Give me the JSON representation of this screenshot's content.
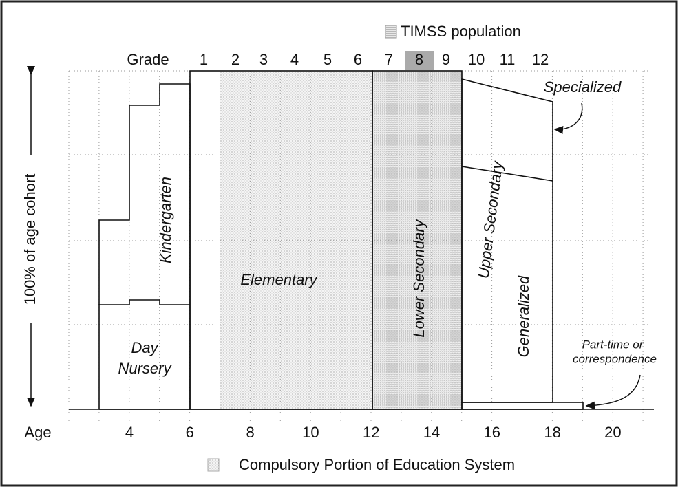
{
  "legend": {
    "timss": "TIMSS population",
    "compulsory": "Compulsory Portion of Education System"
  },
  "grade_label": "Grade",
  "grades": [
    1,
    2,
    3,
    4,
    5,
    6,
    7,
    8,
    9,
    10,
    11,
    12
  ],
  "age_label": "Age",
  "ages": [
    4,
    6,
    8,
    10,
    12,
    14,
    16,
    18,
    20
  ],
  "y_axis_label": "100% of age cohort",
  "regions": {
    "day_nursery": [
      "Day",
      "Nursery"
    ],
    "kindergarten": "Kindergarten",
    "elementary": "Elementary",
    "lower_secondary": "Lower Secondary",
    "upper_secondary": "Upper Secondary",
    "specialized": "Specialized",
    "generalized": "Generalized",
    "part_time": [
      "Part-time or",
      "correspondence"
    ]
  }
}
